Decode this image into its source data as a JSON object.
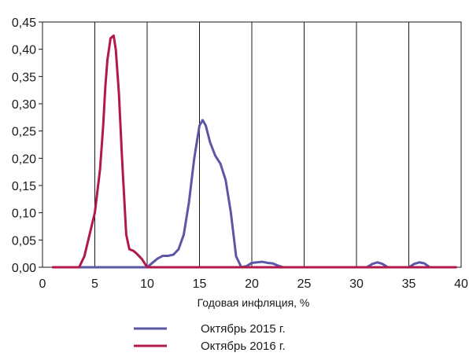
{
  "chart_data": {
    "type": "line",
    "title": "",
    "xlabel": "Годовая инфляция, %",
    "ylabel": "",
    "xlim": [
      0,
      40
    ],
    "ylim": [
      0,
      0.45
    ],
    "x_ticks": [
      0,
      5,
      10,
      15,
      20,
      25,
      30,
      35,
      40
    ],
    "y_ticks": [
      0,
      0.05,
      0.1,
      0.15,
      0.2,
      0.25,
      0.3,
      0.35,
      0.4,
      0.45
    ],
    "x_tick_labels": [
      "0",
      "5",
      "10",
      "15",
      "20",
      "25",
      "30",
      "35",
      "40"
    ],
    "y_tick_labels": [
      "0,00",
      "0,05",
      "0,10",
      "0,15",
      "0,20",
      "0,25",
      "0,30",
      "0,35",
      "0,40",
      "0,45"
    ],
    "grid": {
      "vertical": true,
      "horizontal": false
    },
    "legend_position": "bottom",
    "series": [
      {
        "name": "Октябрь 2015 г.",
        "color": "#5b56a6",
        "points": [
          [
            1,
            0
          ],
          [
            10,
            0
          ],
          [
            10.5,
            0.008
          ],
          [
            11,
            0.016
          ],
          [
            11.5,
            0.021
          ],
          [
            12,
            0.021
          ],
          [
            12.5,
            0.023
          ],
          [
            13,
            0.033
          ],
          [
            13.5,
            0.06
          ],
          [
            14,
            0.12
          ],
          [
            14.5,
            0.2
          ],
          [
            15,
            0.26
          ],
          [
            15.3,
            0.27
          ],
          [
            15.6,
            0.26
          ],
          [
            16,
            0.23
          ],
          [
            16.5,
            0.205
          ],
          [
            17,
            0.19
          ],
          [
            17.5,
            0.16
          ],
          [
            18,
            0.1
          ],
          [
            18.5,
            0.02
          ],
          [
            19,
            0
          ],
          [
            19.5,
            0.002
          ],
          [
            20,
            0.008
          ],
          [
            20.5,
            0.009
          ],
          [
            21,
            0.01
          ],
          [
            21.5,
            0.008
          ],
          [
            22,
            0.007
          ],
          [
            22.5,
            0.003
          ],
          [
            23,
            0
          ],
          [
            31,
            0
          ],
          [
            31.5,
            0.006
          ],
          [
            32,
            0.009
          ],
          [
            32.5,
            0.006
          ],
          [
            33,
            0
          ],
          [
            35,
            0
          ],
          [
            35.5,
            0.006
          ],
          [
            36,
            0.009
          ],
          [
            36.5,
            0.007
          ],
          [
            37,
            0
          ],
          [
            39.5,
            0
          ]
        ]
      },
      {
        "name": "Октябрь 2016 г.",
        "color": "#b0194a",
        "points": [
          [
            1,
            0
          ],
          [
            3.5,
            0
          ],
          [
            4,
            0.02
          ],
          [
            4.5,
            0.06
          ],
          [
            5,
            0.1
          ],
          [
            5.5,
            0.18
          ],
          [
            5.8,
            0.26
          ],
          [
            6,
            0.33
          ],
          [
            6.2,
            0.38
          ],
          [
            6.5,
            0.42
          ],
          [
            6.8,
            0.425
          ],
          [
            7,
            0.4
          ],
          [
            7.3,
            0.32
          ],
          [
            7.6,
            0.2
          ],
          [
            8,
            0.06
          ],
          [
            8.3,
            0.033
          ],
          [
            8.7,
            0.03
          ],
          [
            9,
            0.025
          ],
          [
            9.5,
            0.015
          ],
          [
            10,
            0
          ],
          [
            39.5,
            0
          ]
        ]
      }
    ]
  }
}
